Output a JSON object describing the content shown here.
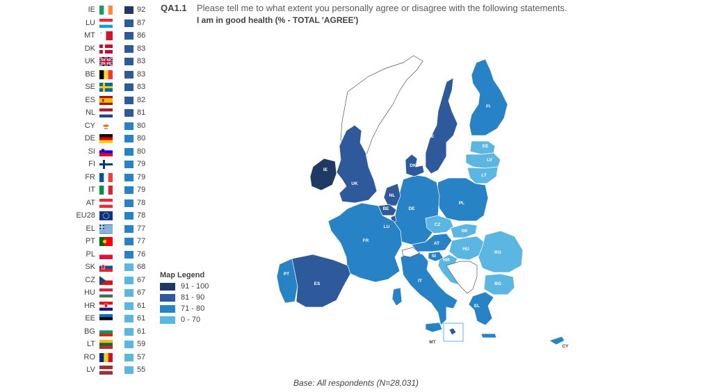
{
  "header": {
    "question_id": "QA1.1",
    "question_text": "Please tell me to what extent you personally agree or disagree with the following statements.",
    "statement": "I am in good health  (% - TOTAL 'AGREE')"
  },
  "colors": {
    "band_91_100": "#1f3864",
    "band_81_90": "#2e5a9c",
    "band_71_80": "#2783c5",
    "band_0_70": "#5bb6e2",
    "non_eu": "#ffffff"
  },
  "chart_data": {
    "type": "choropleth",
    "title": "I am in good health  (% - TOTAL 'AGREE')",
    "countries": [
      {
        "code": "IE",
        "value": 92
      },
      {
        "code": "LU",
        "value": 87
      },
      {
        "code": "MT",
        "value": 86
      },
      {
        "code": "DK",
        "value": 83
      },
      {
        "code": "UK",
        "value": 83
      },
      {
        "code": "BE",
        "value": 83
      },
      {
        "code": "SE",
        "value": 83
      },
      {
        "code": "ES",
        "value": 82
      },
      {
        "code": "NL",
        "value": 81
      },
      {
        "code": "CY",
        "value": 80
      },
      {
        "code": "DE",
        "value": 80
      },
      {
        "code": "SI",
        "value": 80
      },
      {
        "code": "FI",
        "value": 79
      },
      {
        "code": "FR",
        "value": 79
      },
      {
        "code": "IT",
        "value": 79
      },
      {
        "code": "AT",
        "value": 78
      },
      {
        "code": "EU28",
        "value": 78
      },
      {
        "code": "EL",
        "value": 77
      },
      {
        "code": "PT",
        "value": 77
      },
      {
        "code": "PL",
        "value": 76
      },
      {
        "code": "SK",
        "value": 68
      },
      {
        "code": "CZ",
        "value": 67
      },
      {
        "code": "HU",
        "value": 67
      },
      {
        "code": "HR",
        "value": 61
      },
      {
        "code": "EE",
        "value": 61
      },
      {
        "code": "BG",
        "value": 61
      },
      {
        "code": "LT",
        "value": 59
      },
      {
        "code": "RO",
        "value": 57
      },
      {
        "code": "LV",
        "value": 55
      }
    ],
    "legend": {
      "title": "Map Legend",
      "bands": [
        {
          "label": "91 - 100",
          "min": 91,
          "max": 100,
          "color": "#1f3864"
        },
        {
          "label": "81 - 90",
          "min": 81,
          "max": 90,
          "color": "#2e5a9c"
        },
        {
          "label": "71 - 80",
          "min": 71,
          "max": 80,
          "color": "#2783c5"
        },
        {
          "label": "0 - 70",
          "min": 0,
          "max": 70,
          "color": "#5bb6e2"
        }
      ]
    }
  },
  "footer": {
    "base": "Base: All respondents (N=28,031)"
  }
}
